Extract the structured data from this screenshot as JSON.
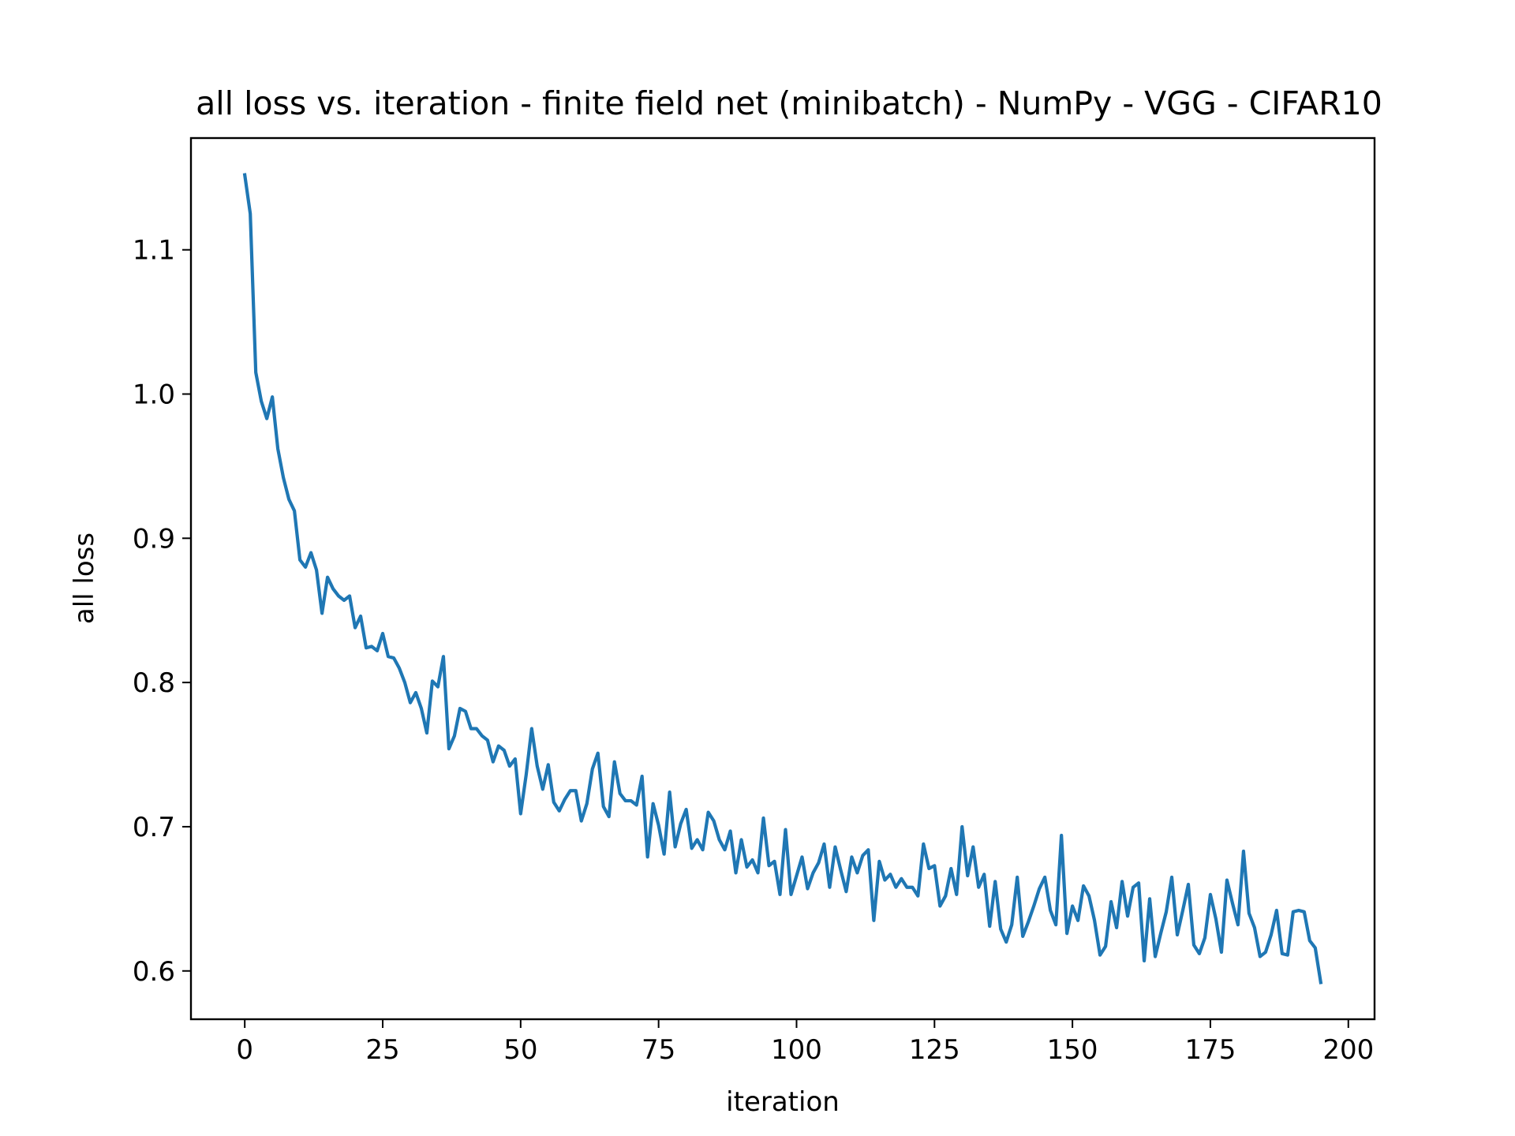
{
  "chart_data": {
    "type": "line",
    "title": "all loss vs. iteration - finite field net (minibatch) - NumPy - VGG - CIFAR10",
    "xlabel": "iteration",
    "ylabel": "all loss",
    "xlim": [
      -9.75,
      204.75
    ],
    "ylim": [
      0.5665,
      1.1775
    ],
    "xticks": [
      0,
      25,
      50,
      75,
      100,
      125,
      150,
      175,
      200
    ],
    "xtick_labels": [
      "0",
      "25",
      "50",
      "75",
      "100",
      "125",
      "150",
      "175",
      "200"
    ],
    "yticks": [
      0.6,
      0.7,
      0.8,
      0.9,
      1.0,
      1.1
    ],
    "ytick_labels": [
      "0.6",
      "0.7",
      "0.8",
      "0.9",
      "1.0",
      "1.1"
    ],
    "grid": false,
    "legend": "none",
    "colors": {
      "line": "#1f77b4",
      "axes": "#000000",
      "background": "#ffffff"
    },
    "series": [
      {
        "x": [
          0,
          1,
          2,
          3,
          4,
          5,
          6,
          7,
          8,
          9,
          10,
          11,
          12,
          13,
          14,
          15,
          16,
          17,
          18,
          19,
          20,
          21,
          22,
          23,
          24,
          25,
          26,
          27,
          28,
          29,
          30,
          31,
          32,
          33,
          34,
          35,
          36,
          37,
          38,
          39,
          40,
          41,
          42,
          43,
          44,
          45,
          46,
          47,
          48,
          49,
          50,
          51,
          52,
          53,
          54,
          55,
          56,
          57,
          58,
          59,
          60,
          61,
          62,
          63,
          64,
          65,
          66,
          67,
          68,
          69,
          70,
          71,
          72,
          73,
          74,
          75,
          76,
          77,
          78,
          79,
          80,
          81,
          82,
          83,
          84,
          85,
          86,
          87,
          88,
          89,
          90,
          91,
          92,
          93,
          94,
          95,
          96,
          97,
          98,
          99,
          100,
          101,
          102,
          103,
          104,
          105,
          106,
          107,
          108,
          109,
          110,
          111,
          112,
          113,
          114,
          115,
          116,
          117,
          118,
          119,
          120,
          121,
          122,
          123,
          124,
          125,
          126,
          127,
          128,
          129,
          130,
          131,
          132,
          133,
          134,
          135,
          136,
          137,
          138,
          139,
          140,
          141,
          142,
          143,
          144,
          145,
          146,
          147,
          148,
          149,
          150,
          151,
          152,
          153,
          154,
          155,
          156,
          157,
          158,
          159,
          160,
          161,
          162,
          163,
          164,
          165,
          166,
          167,
          168,
          169,
          170,
          171,
          172,
          173,
          174,
          175,
          176,
          177,
          178,
          179,
          180,
          181,
          182,
          183,
          184,
          185,
          186,
          187,
          188,
          189,
          190,
          191,
          192,
          193,
          194,
          195
        ],
        "values": [
          1.152,
          1.125,
          1.015,
          0.995,
          0.983,
          0.998,
          0.962,
          0.942,
          0.927,
          0.919,
          0.885,
          0.88,
          0.89,
          0.878,
          0.848,
          0.873,
          0.865,
          0.86,
          0.857,
          0.86,
          0.838,
          0.846,
          0.824,
          0.825,
          0.822,
          0.834,
          0.818,
          0.817,
          0.81,
          0.8,
          0.786,
          0.793,
          0.782,
          0.765,
          0.801,
          0.797,
          0.818,
          0.754,
          0.763,
          0.782,
          0.78,
          0.768,
          0.768,
          0.763,
          0.76,
          0.745,
          0.756,
          0.753,
          0.742,
          0.747,
          0.709,
          0.736,
          0.768,
          0.742,
          0.726,
          0.743,
          0.717,
          0.711,
          0.719,
          0.725,
          0.725,
          0.704,
          0.716,
          0.74,
          0.751,
          0.714,
          0.707,
          0.745,
          0.723,
          0.718,
          0.718,
          0.715,
          0.735,
          0.679,
          0.716,
          0.701,
          0.681,
          0.724,
          0.686,
          0.702,
          0.712,
          0.685,
          0.691,
          0.684,
          0.71,
          0.704,
          0.691,
          0.684,
          0.697,
          0.668,
          0.691,
          0.672,
          0.677,
          0.668,
          0.706,
          0.673,
          0.676,
          0.653,
          0.698,
          0.653,
          0.666,
          0.679,
          0.657,
          0.668,
          0.675,
          0.688,
          0.658,
          0.686,
          0.67,
          0.655,
          0.679,
          0.668,
          0.68,
          0.684,
          0.635,
          0.676,
          0.663,
          0.667,
          0.658,
          0.664,
          0.658,
          0.658,
          0.652,
          0.688,
          0.671,
          0.673,
          0.645,
          0.652,
          0.671,
          0.653,
          0.7,
          0.666,
          0.686,
          0.658,
          0.667,
          0.631,
          0.662,
          0.629,
          0.62,
          0.632,
          0.665,
          0.624,
          0.634,
          0.645,
          0.657,
          0.665,
          0.642,
          0.632,
          0.694,
          0.626,
          0.645,
          0.635,
          0.659,
          0.652,
          0.635,
          0.611,
          0.617,
          0.648,
          0.63,
          0.662,
          0.638,
          0.658,
          0.661,
          0.607,
          0.65,
          0.61,
          0.626,
          0.641,
          0.665,
          0.625,
          0.642,
          0.66,
          0.618,
          0.612,
          0.623,
          0.653,
          0.636,
          0.613,
          0.663,
          0.647,
          0.632,
          0.683,
          0.64,
          0.63,
          0.61,
          0.613,
          0.625,
          0.642,
          0.612,
          0.611,
          0.641,
          0.642,
          0.641,
          0.621,
          0.616,
          0.592
        ]
      }
    ]
  }
}
